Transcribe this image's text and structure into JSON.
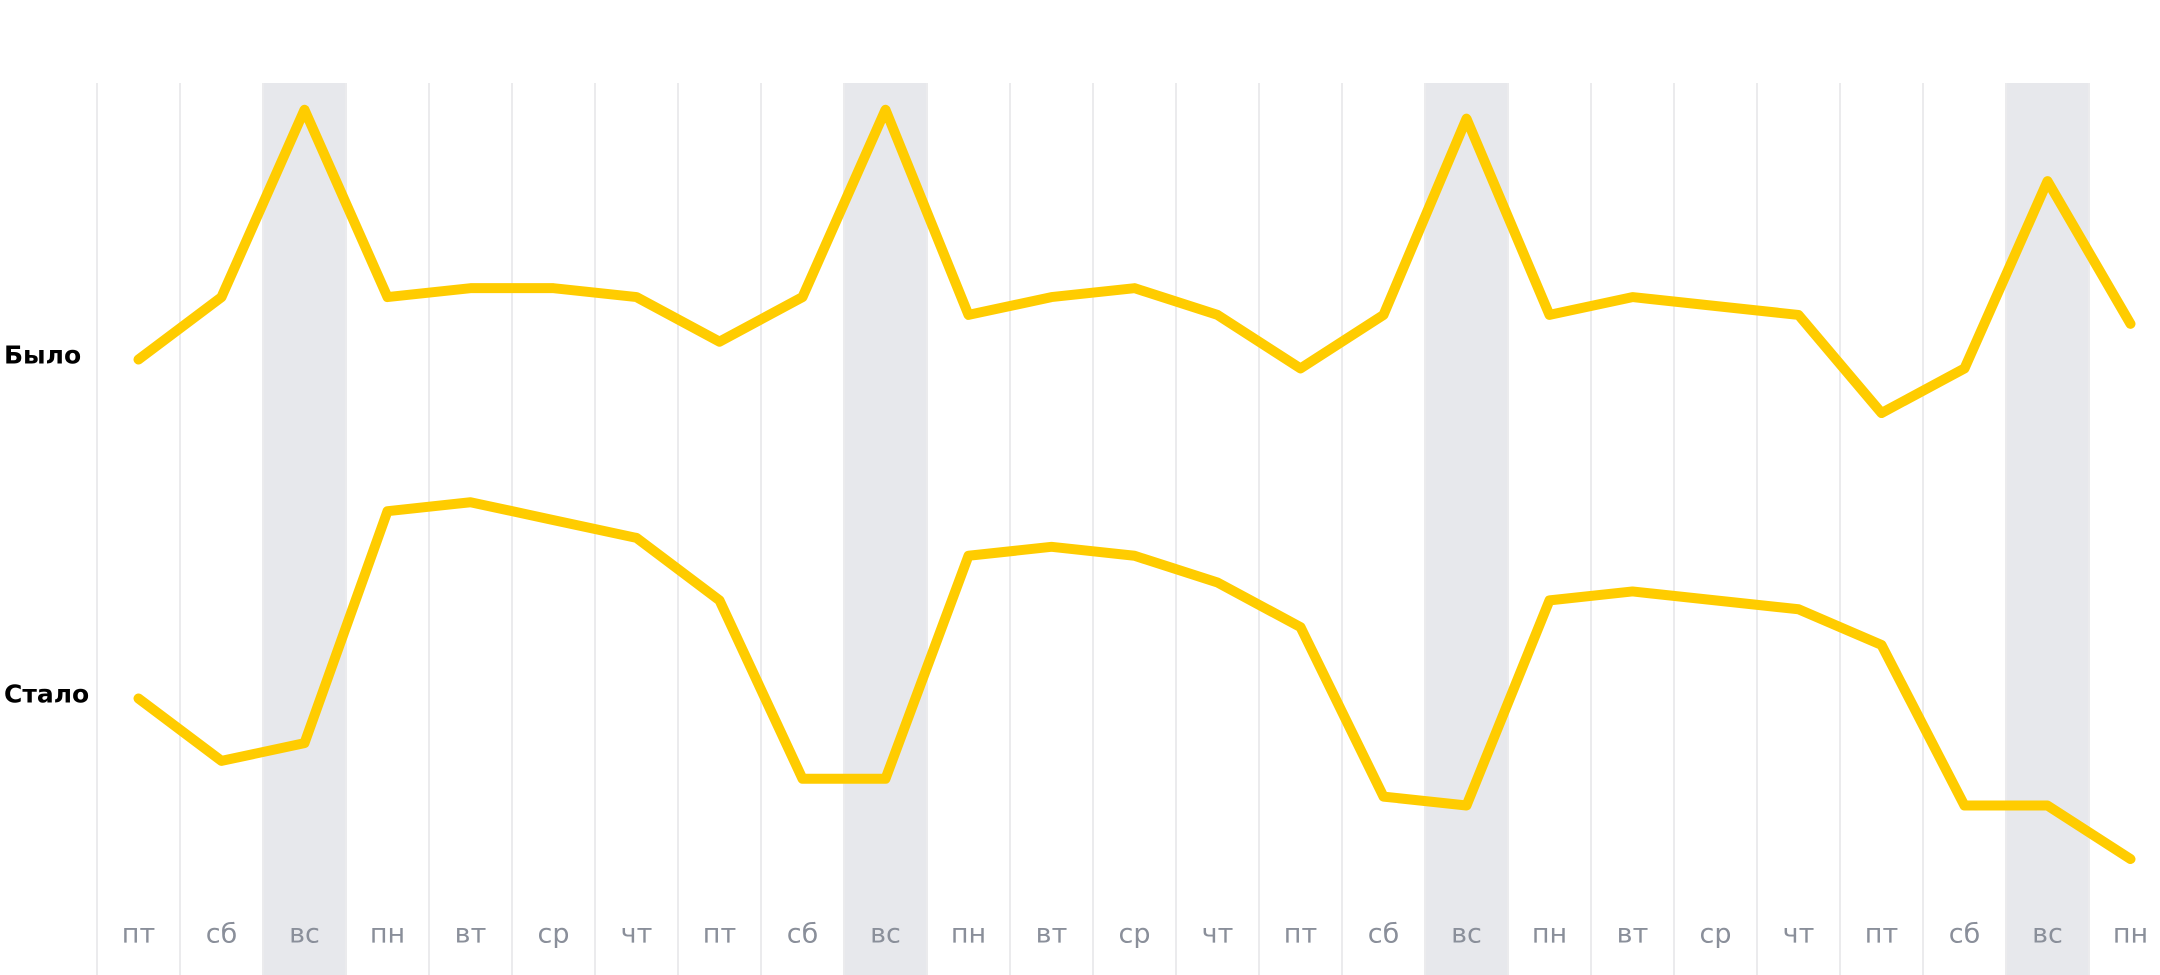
{
  "chart_data": {
    "type": "line",
    "categories": [
      "пт",
      "сб",
      "вс",
      "пн",
      "вт",
      "ср",
      "чт",
      "пт",
      "сб",
      "вс",
      "пн",
      "вт",
      "ср",
      "чт",
      "пт",
      "сб",
      "вс",
      "пн",
      "вт",
      "ср",
      "чт",
      "пт",
      "сб",
      "вс",
      "пн"
    ],
    "series": [
      {
        "name": "Было",
        "color": "#ffcc00",
        "values": [
          69,
          76,
          97,
          76,
          77,
          77,
          76,
          71,
          76,
          97,
          74,
          76,
          77,
          74,
          68,
          74,
          96,
          74,
          76,
          75,
          74,
          63,
          68,
          89,
          73
        ]
      },
      {
        "name": "Стало",
        "color": "#ffcc00",
        "values": [
          31,
          24,
          26,
          52,
          53,
          51,
          49,
          42,
          22,
          22,
          47,
          48,
          47,
          44,
          39,
          20,
          19,
          42,
          43,
          42,
          41,
          37,
          19,
          19,
          13
        ]
      }
    ],
    "ylim": [
      0,
      100
    ],
    "shaded_columns": [
      2,
      9,
      16,
      23
    ],
    "shade_color": "#e7e8ec",
    "grid": true
  }
}
